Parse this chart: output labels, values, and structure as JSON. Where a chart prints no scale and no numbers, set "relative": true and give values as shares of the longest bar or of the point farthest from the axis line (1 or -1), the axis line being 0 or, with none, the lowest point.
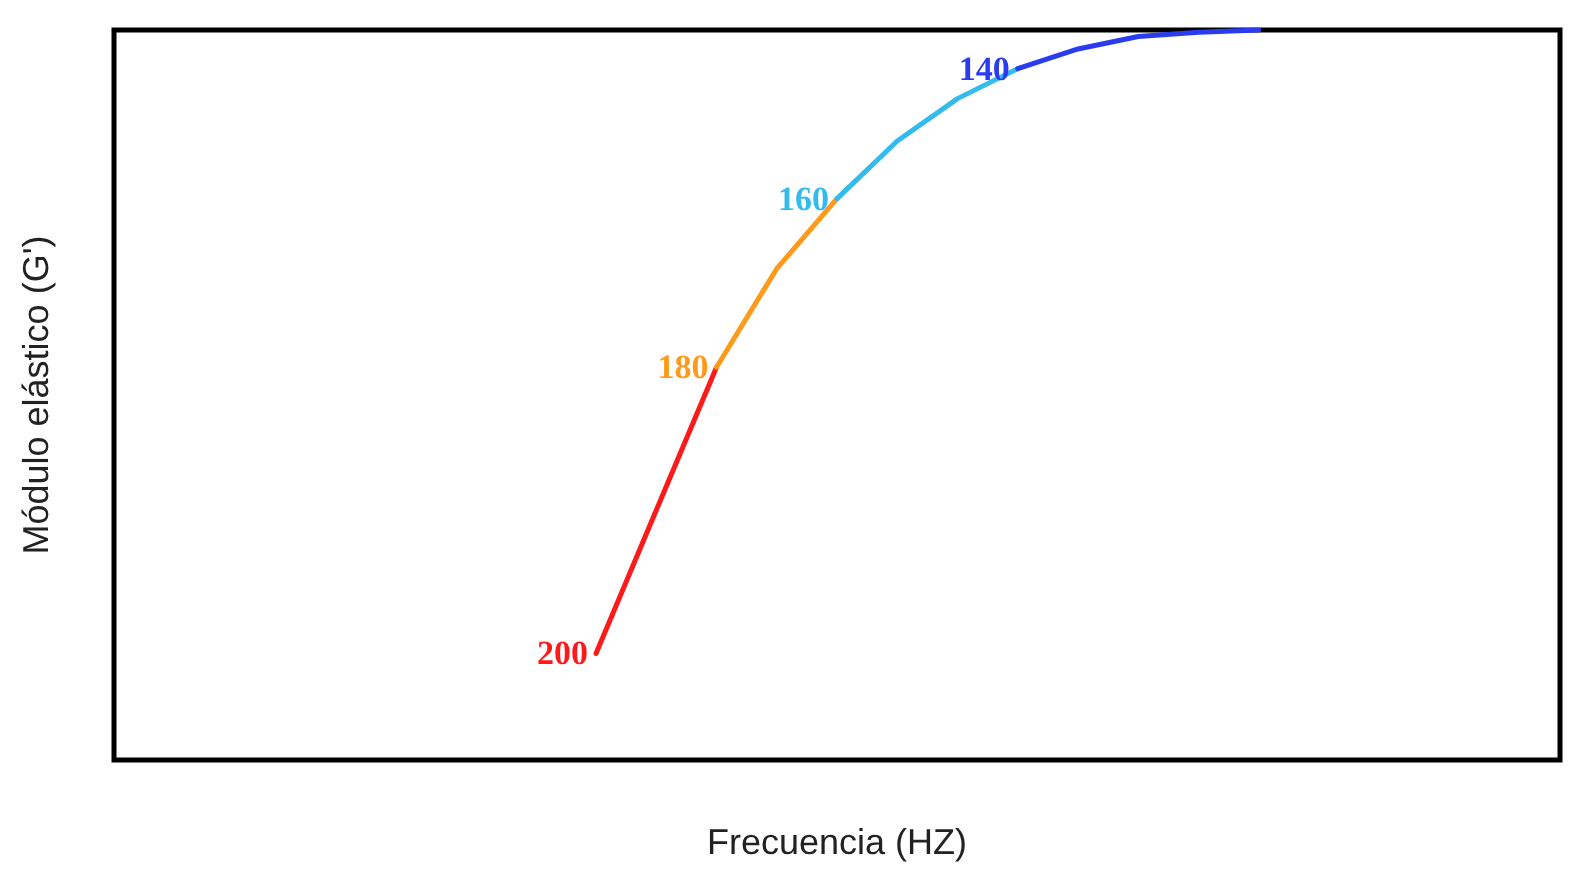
{
  "chart_data": {
    "type": "line",
    "relative": true,
    "xlabel": "Frecuencia (HZ)",
    "ylabel": "Módulo elástico (G')",
    "marker": "none",
    "line_style": "solid",
    "grid": false,
    "legend": false,
    "categories": [
      null,
      null,
      null,
      null,
      null,
      null,
      null,
      null,
      null,
      null,
      null,
      null,
      null,
      null,
      null,
      null,
      null,
      null,
      null,
      null,
      null,
      null,
      null,
      null,
      null
    ],
    "series": [
      {
        "name": "200",
        "color": "#ff1a1a",
        "values": [
          null,
          null,
          null,
          null,
          null,
          null,
          null,
          null,
          0.146,
          0.342,
          0.538,
          null,
          null,
          null,
          null,
          null,
          null,
          null,
          null,
          null,
          null,
          null,
          null,
          null,
          null
        ]
      },
      {
        "name": "180",
        "color": "#ff9a1a",
        "values": [
          null,
          null,
          null,
          null,
          null,
          null,
          null,
          null,
          null,
          null,
          0.538,
          0.673,
          0.769,
          null,
          null,
          null,
          null,
          null,
          null,
          null,
          null,
          null,
          null,
          null,
          null
        ]
      },
      {
        "name": "160",
        "color": "#33bbee",
        "values": [
          null,
          null,
          null,
          null,
          null,
          null,
          null,
          null,
          null,
          null,
          null,
          null,
          0.769,
          0.848,
          0.906,
          0.947,
          null,
          null,
          null,
          null,
          null,
          null,
          null,
          null,
          null
        ]
      },
      {
        "name": "140",
        "color": "#2a3cf0",
        "values": [
          null,
          null,
          null,
          null,
          null,
          null,
          null,
          null,
          null,
          null,
          null,
          null,
          null,
          null,
          null,
          0.947,
          0.974,
          0.991,
          0.997,
          1,
          null,
          null,
          null,
          null,
          null
        ]
      }
    ]
  }
}
